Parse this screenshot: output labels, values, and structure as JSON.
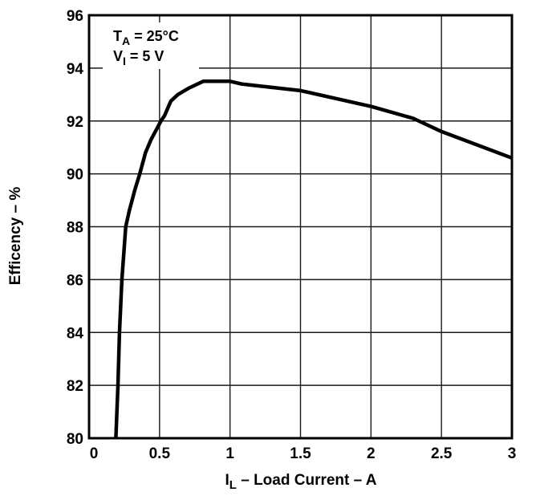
{
  "chart_data": {
    "type": "line",
    "title": "",
    "xlabel": "I_L – Load Current – A",
    "xlabel_main": "I",
    "xlabel_sub": "L",
    "xlabel_rest": " – Load Current – A",
    "ylabel": "Efficency – %",
    "xlim": [
      0,
      3
    ],
    "ylim": [
      80,
      96
    ],
    "xticks": [
      0,
      0.5,
      1,
      1.5,
      2,
      2.5,
      3
    ],
    "xtick_labels": [
      "0",
      "0.5",
      "1",
      "1.5",
      "2",
      "2.5",
      "3"
    ],
    "yticks": [
      80,
      82,
      84,
      86,
      88,
      90,
      92,
      94,
      96
    ],
    "ytick_labels": [
      "80",
      "82",
      "84",
      "86",
      "88",
      "90",
      "92",
      "94",
      "96"
    ],
    "grid": true,
    "legend": null,
    "annotations": [
      {
        "main": "T",
        "sub": "A",
        "rest": " = 25°C"
      },
      {
        "main": "V",
        "sub": "I",
        "rest": " = 5 V"
      }
    ],
    "series": [
      {
        "name": "Efficiency",
        "x": [
          0.19,
          0.205,
          0.216,
          0.233,
          0.26,
          0.285,
          0.325,
          0.36,
          0.4,
          0.44,
          0.51,
          0.535,
          0.58,
          0.63,
          0.71,
          0.81,
          1.0,
          1.08,
          1.5,
          2.0,
          2.3,
          2.5,
          3.0
        ],
        "y": [
          80.0,
          82.0,
          84.0,
          86.0,
          88.0,
          88.6,
          89.4,
          90.0,
          90.8,
          91.3,
          92.0,
          92.2,
          92.75,
          93.0,
          93.25,
          93.5,
          93.5,
          93.4,
          93.15,
          92.55,
          92.1,
          91.6,
          90.6
        ],
        "color": "#000000"
      }
    ]
  }
}
